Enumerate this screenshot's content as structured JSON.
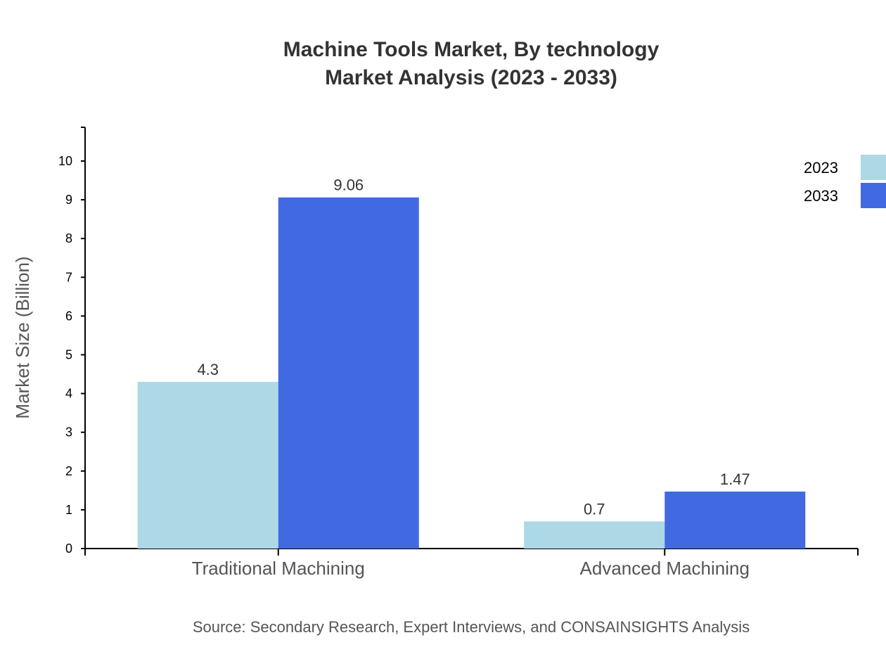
{
  "chart_data": {
    "type": "bar",
    "title": [
      "Machine Tools Market, By technology",
      "Market Analysis (2023 - 2033)"
    ],
    "xlabel": "",
    "ylabel": "Market Size (Billion)",
    "categories": [
      "Traditional Machining",
      "Advanced Machining"
    ],
    "series": [
      {
        "name": "2023",
        "values": [
          4.3,
          0.7
        ],
        "color": "#ADD8E6"
      },
      {
        "name": "2033",
        "values": [
          9.06,
          1.47
        ],
        "color": "#4169E1"
      }
    ],
    "data_labels": [
      [
        "4.3",
        "0.7"
      ],
      [
        "9.06",
        "1.47"
      ]
    ],
    "ylim": [
      0,
      10.87
    ],
    "yticks": [
      "0",
      "1",
      "2",
      "3",
      "4",
      "5",
      "6",
      "7",
      "8",
      "9",
      "10"
    ],
    "grid": false,
    "legend_position": "top-right"
  },
  "source": "Source: Secondary Research, Expert Interviews, and CONSAINSIGHTS Analysis"
}
